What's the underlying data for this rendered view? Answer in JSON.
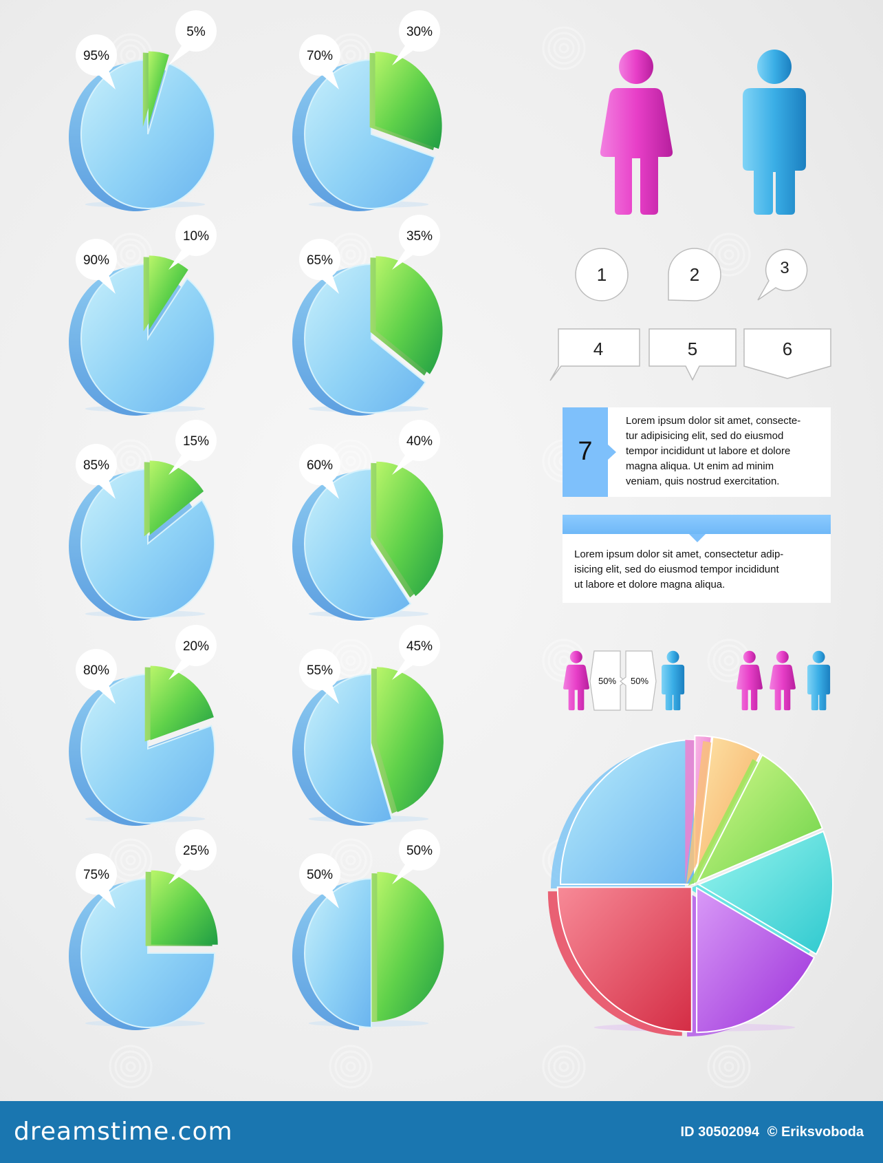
{
  "chart_data": [
    {
      "type": "pie",
      "categories": [
        "Blue",
        "Green"
      ],
      "values": [
        95,
        5
      ],
      "data_labels": [
        "95%",
        "5%"
      ]
    },
    {
      "type": "pie",
      "categories": [
        "Blue",
        "Green"
      ],
      "values": [
        90,
        10
      ],
      "data_labels": [
        "90%",
        "10%"
      ]
    },
    {
      "type": "pie",
      "categories": [
        "Blue",
        "Green"
      ],
      "values": [
        85,
        15
      ],
      "data_labels": [
        "85%",
        "15%"
      ]
    },
    {
      "type": "pie",
      "categories": [
        "Blue",
        "Green"
      ],
      "values": [
        80,
        20
      ],
      "data_labels": [
        "80%",
        "20%"
      ]
    },
    {
      "type": "pie",
      "categories": [
        "Blue",
        "Green"
      ],
      "values": [
        75,
        25
      ],
      "data_labels": [
        "75%",
        "25%"
      ]
    },
    {
      "type": "pie",
      "categories": [
        "Blue",
        "Green"
      ],
      "values": [
        70,
        30
      ],
      "data_labels": [
        "70%",
        "30%"
      ]
    },
    {
      "type": "pie",
      "categories": [
        "Blue",
        "Green"
      ],
      "values": [
        65,
        35
      ],
      "data_labels": [
        "65%",
        "35%"
      ]
    },
    {
      "type": "pie",
      "categories": [
        "Blue",
        "Green"
      ],
      "values": [
        60,
        40
      ],
      "data_labels": [
        "60%",
        "40%"
      ]
    },
    {
      "type": "pie",
      "categories": [
        "Blue",
        "Green"
      ],
      "values": [
        55,
        45
      ],
      "data_labels": [
        "55%",
        "45%"
      ]
    },
    {
      "type": "pie",
      "categories": [
        "Blue",
        "Green"
      ],
      "values": [
        50,
        50
      ],
      "data_labels": [
        "50%",
        "50%"
      ]
    },
    {
      "type": "pie",
      "categories": [
        "Blue",
        "Pink",
        "Orange",
        "Green",
        "Cyan",
        "Purple",
        "Red"
      ],
      "values": [
        25,
        2,
        6,
        11,
        14,
        17,
        25
      ]
    }
  ],
  "colors": {
    "blue": "#7fc6f4",
    "green": "#5fd14a",
    "pink": "#f07fcf",
    "orange": "#f9c27a",
    "lime": "#9be65c",
    "cyan": "#54e0df",
    "purple": "#b35be8",
    "red": "#e8475d",
    "female": "#e83fc8",
    "male": "#3aaee6",
    "footer": "#1a76b0"
  },
  "icons": [
    "female-figure-icon",
    "male-figure-icon",
    "speech-bubble-icon",
    "dreamstime-watermark-icon"
  ],
  "callouts": [
    "1",
    "2",
    "3",
    "4",
    "5",
    "6"
  ],
  "info_box_7": {
    "number": "7",
    "lines": [
      "Lorem ipsum dolor sit amet, consecte-",
      "tur adipisicing elit, sed do eiusmod",
      "tempor incididunt ut labore et dolore",
      "magna aliqua. Ut enim ad minim",
      "veniam, quis nostrud exercitation."
    ]
  },
  "info_box_banner": {
    "lines": [
      "Lorem ipsum dolor sit amet, consectetur adip-",
      "isicing elit, sed do eiusmod tempor incididunt",
      "ut labore et dolore magna aliqua."
    ]
  },
  "gender_ratio": {
    "female": "50%",
    "male": "50%"
  },
  "footer": {
    "logo": "dreamstime.com",
    "id": "ID 30502094",
    "copyright": "© Eriksvoboda"
  }
}
